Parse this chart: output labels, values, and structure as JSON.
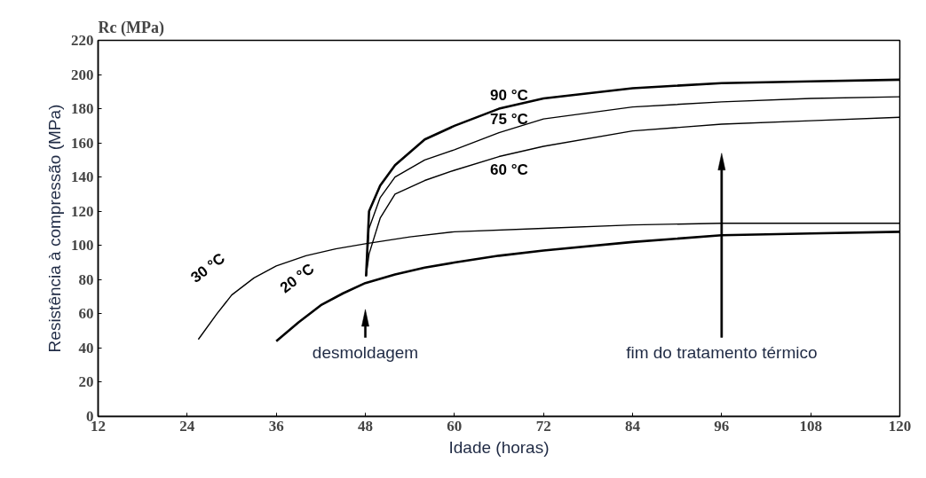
{
  "chart_data": {
    "type": "line",
    "ylabel": "Resistência à compressão (MPa)",
    "xlabel": "Idade (horas)",
    "xlim": [
      12,
      120
    ],
    "ylim": [
      0,
      220
    ],
    "xticks": [
      12,
      24,
      36,
      48,
      60,
      72,
      84,
      96,
      108,
      120
    ],
    "yticks": [
      0,
      20,
      40,
      60,
      80,
      100,
      120,
      140,
      160,
      180,
      200,
      220
    ],
    "grid": false,
    "marker": "none",
    "line_style": "solid",
    "series": [
      {
        "name": "90 °C",
        "color": "#000000",
        "x": [
          48.1,
          48.5,
          50,
          52,
          56,
          60,
          66,
          72,
          84,
          96,
          108,
          120
        ],
        "values": [
          82,
          120,
          135,
          147,
          162,
          170,
          180,
          186,
          192,
          195,
          196,
          197
        ]
      },
      {
        "name": "75 °C",
        "color": "#000000",
        "x": [
          48.1,
          48.5,
          50,
          52,
          56,
          60,
          66,
          72,
          84,
          96,
          108,
          120
        ],
        "values": [
          82,
          110,
          128,
          140,
          150,
          156,
          166,
          174,
          181,
          184,
          186,
          187
        ]
      },
      {
        "name": "60 °C",
        "color": "#000000",
        "x": [
          48.1,
          48.5,
          50,
          52,
          56,
          60,
          66,
          72,
          84,
          96,
          108,
          120
        ],
        "values": [
          82,
          95,
          116,
          130,
          138,
          144,
          152,
          158,
          167,
          171,
          173,
          175
        ]
      },
      {
        "name": "30 °C",
        "color": "#000000",
        "x": [
          25.5,
          28,
          30,
          33,
          36,
          40,
          44,
          48,
          54,
          60,
          72,
          84,
          96,
          108,
          120
        ],
        "values": [
          45,
          60,
          71,
          81,
          88,
          94,
          98,
          101,
          105,
          108,
          110,
          112,
          113,
          113,
          113
        ]
      },
      {
        "name": "20 °C",
        "color": "#000000",
        "x": [
          36,
          39,
          42,
          45,
          48,
          52,
          56,
          60,
          66,
          72,
          84,
          96,
          108,
          120
        ],
        "values": [
          44,
          55,
          65,
          72,
          78,
          83,
          87,
          90,
          94,
          97,
          102,
          106,
          107,
          108
        ]
      }
    ],
    "ref_lines": [
      {
        "axis": "x",
        "value": 48,
        "label": "desmoldagem"
      },
      {
        "axis": "x",
        "value": 96,
        "label": "fim do tratamento térmico"
      }
    ],
    "annotations": [
      "Rc (MPa)"
    ]
  }
}
